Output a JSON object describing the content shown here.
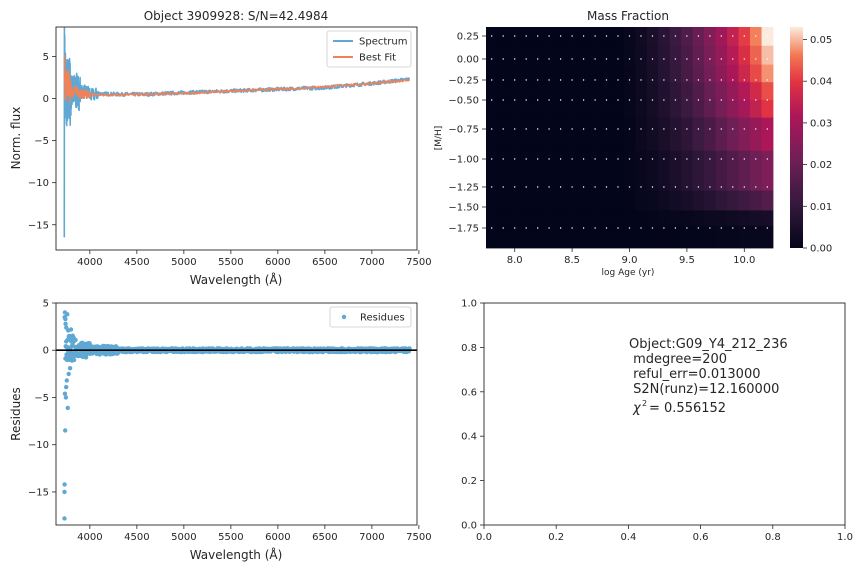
{
  "chart_data": [
    {
      "type": "line",
      "title": "Object 3909928: S/N=42.4984",
      "xlabel": "Wavelength (Å)",
      "ylabel": "Norm. flux",
      "xlim": [
        3640,
        7480
      ],
      "ylim": [
        -18,
        8.5
      ],
      "xticks": [
        "4000",
        "4500",
        "5000",
        "5500",
        "6000",
        "6500",
        "7000",
        "7500"
      ],
      "yticks": [
        "5",
        "0",
        "−5",
        "−10",
        "−15"
      ],
      "legend_position": "upper right",
      "series": [
        {
          "name": "Spectrum",
          "color": "#5fa8d3",
          "x": [
            3728,
            3733,
            3738,
            3743,
            3750,
            3760,
            3780,
            3800,
            3850,
            3900,
            4000,
            4100,
            4300,
            4600,
            5000,
            5500,
            6000,
            6500,
            7000,
            7400
          ],
          "y": [
            -16.5,
            7.5,
            -8,
            4.5,
            -5,
            3,
            -3,
            2.5,
            -1,
            1.8,
            0.3,
            0.6,
            0.5,
            0.5,
            0.7,
            0.9,
            1.1,
            1.3,
            1.8,
            2.3
          ]
        },
        {
          "name": "Best Fit",
          "color": "#f0825a",
          "x": [
            3728,
            3740,
            3760,
            3800,
            3850,
            3900,
            4000,
            4200,
            4600,
            5000,
            5500,
            6000,
            6500,
            7000,
            7400
          ],
          "y": [
            4.5,
            1.0,
            2.0,
            0.6,
            1.0,
            0.5,
            0.5,
            0.4,
            0.5,
            0.6,
            0.9,
            1.1,
            1.4,
            1.8,
            2.2
          ]
        }
      ]
    },
    {
      "type": "heatmap",
      "title": "Mass Fraction",
      "xlabel": "log Age (yr)",
      "ylabel": "[M/H]",
      "x_values": [
        7.75,
        7.85,
        7.95,
        8.05,
        8.15,
        8.25,
        8.35,
        8.45,
        8.55,
        8.65,
        8.75,
        8.85,
        8.95,
        9.05,
        9.15,
        9.25,
        9.35,
        9.45,
        9.55,
        9.65,
        9.75,
        9.85,
        9.95,
        10.05,
        10.15
      ],
      "y_values": [
        0.3,
        0.2,
        0.05,
        -0.15,
        -0.35,
        -0.5,
        -0.75,
        -1.0,
        -1.3,
        -1.55,
        -1.75
      ],
      "xlim": [
        7.75,
        10.25
      ],
      "xticks": [
        "8.0",
        "8.5",
        "9.0",
        "9.5",
        "10.0"
      ],
      "yticks": [
        "0.25",
        "0.00",
        "−0.25",
        "−0.50",
        "−0.75",
        "−1.00",
        "−1.25",
        "−1.50",
        "−1.75"
      ],
      "colorbar": {
        "ticks": [
          "0.00",
          "0.01",
          "0.02",
          "0.03",
          "0.04",
          "0.05"
        ],
        "max": 0.053
      },
      "grid_points": "white dots at each age/metallicity node",
      "colormap": "rocket"
    },
    {
      "type": "scatter",
      "xlabel": "Wavelength (Å)",
      "ylabel": "Residues",
      "xlim": [
        3640,
        7480
      ],
      "ylim": [
        -18.5,
        5
      ],
      "xticks": [
        "4000",
        "4500",
        "5000",
        "5500",
        "6000",
        "6500",
        "7000",
        "7500"
      ],
      "yticks": [
        "5",
        "0",
        "−5",
        "−10",
        "−15"
      ],
      "legend_position": "upper right",
      "series": [
        {
          "name": "Residues",
          "color": "#5fa8d3",
          "x": [
            3730,
            3732,
            3735,
            3738,
            3740,
            3745,
            3750,
            3755,
            3760,
            3765,
            3770,
            3775,
            3780,
            3790,
            3800,
            3810,
            3820,
            3730,
            3735,
            3742,
            3748,
            3733
          ],
          "y": [
            -17.8,
            -14.2,
            4.0,
            -8.5,
            3.3,
            -5.0,
            2.4,
            -3.2,
            3.8,
            -6.1,
            2.1,
            -2.5,
            1.5,
            -1.9,
            2.2,
            -1.1,
            1.0,
            -15.0,
            -4.6,
            2.8,
            -3.9,
            3.5
          ]
        }
      ],
      "hline": 0
    },
    {
      "type": "table",
      "xlim": [
        0,
        1
      ],
      "ylim": [
        0,
        1
      ],
      "xticks": [
        "0.0",
        "0.2",
        "0.4",
        "0.6",
        "0.8",
        "1.0"
      ],
      "yticks": [
        "0.0",
        "0.2",
        "0.4",
        "0.6",
        "0.8",
        "1.0"
      ],
      "lines": [
        "Object:G09_Y4_212_236",
        " mdegree=200",
        " reful_err=0.013000",
        " S2N(runz)=12.160000"
      ],
      "chi2_label": "χ",
      "chi2_value": "= 0.556152"
    }
  ]
}
